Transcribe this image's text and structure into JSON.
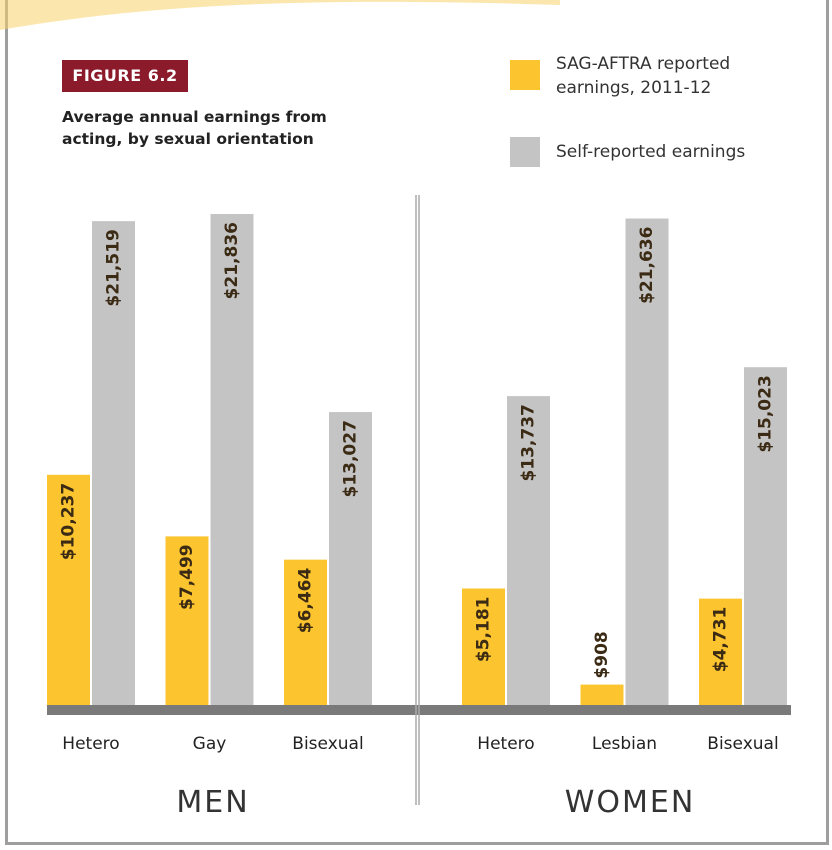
{
  "chart_data": {
    "type": "bar",
    "figure_label": "FIGURE 6.2",
    "title": "Average annual earnings from acting, by sexual orientation",
    "groups": [
      {
        "label": "MEN",
        "categories": [
          "Hetero",
          "Gay",
          "Bisexual"
        ]
      },
      {
        "label": "WOMEN",
        "categories": [
          "Hetero",
          "Lesbian",
          "Bisexual"
        ]
      }
    ],
    "series": [
      {
        "name": "SAG-AFTRA reported earnings, 2011-12",
        "color": "#fcc52f",
        "values": [
          10237,
          7499,
          6464,
          5181,
          908,
          4731
        ],
        "value_labels": [
          "$10,237",
          "$7,499",
          "$6,464",
          "$5,181",
          "$908",
          "$4,731"
        ]
      },
      {
        "name": "Self-reported earnings",
        "color": "#c4c4c4",
        "values": [
          21519,
          21836,
          13027,
          13737,
          21636,
          15023
        ],
        "value_labels": [
          "$21,519",
          "$21,836",
          "$13,027",
          "$13,737",
          "$21,636",
          "$15,023"
        ]
      }
    ]
  }
}
